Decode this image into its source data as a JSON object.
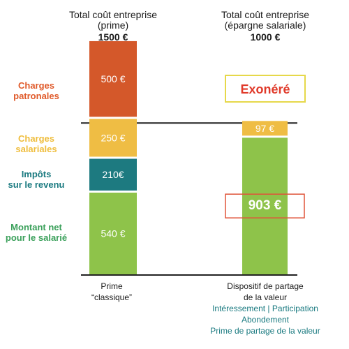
{
  "chart_data": {
    "type": "bar",
    "stacked": true,
    "categories": [
      "Prime classique",
      "Dispositif de partage de la valeur"
    ],
    "headers": [
      {
        "line1": "Total coût entreprise",
        "line2": "(prime)",
        "total": "1500 €"
      },
      {
        "line1": "Total coût entreprise",
        "line2": "(épargne salariale)",
        "total": "1000 €"
      }
    ],
    "row_labels": [
      {
        "key": "charges_patronales",
        "lines": [
          "Charges",
          "patronales"
        ],
        "color": "#e05a2a"
      },
      {
        "key": "charges_salariales",
        "lines": [
          "Charges",
          "salariales"
        ],
        "color": "#efbd3c"
      },
      {
        "key": "impots",
        "lines": [
          "Impôts",
          "sur le revenu"
        ],
        "color": "#1a7a80"
      },
      {
        "key": "net",
        "lines": [
          "Montant net",
          "pour le salarié"
        ],
        "color": "#3aa05a"
      }
    ],
    "bars": [
      {
        "segments": [
          {
            "name": "Charges patronales",
            "value": 500,
            "label": "500 €",
            "color": "#d4582a"
          },
          {
            "name": "Charges salariales",
            "value": 250,
            "label": "250 €",
            "color": "#efbd44"
          },
          {
            "name": "Impôts sur le revenu",
            "value": 210,
            "label": "210€",
            "color": "#1d7a80"
          },
          {
            "name": "Montant net pour le salarié",
            "value": 540,
            "label": "540 €",
            "color": "#8ec34a"
          }
        ]
      },
      {
        "segments": [
          {
            "name": "Charges salariales",
            "value": 97,
            "label": "97 €",
            "color": "#efbd44"
          },
          {
            "name": "Montant net pour le salarié",
            "value": 903,
            "label": "903 €",
            "color": "#8ec34a"
          }
        ]
      }
    ],
    "exonere_label": "Exonéré",
    "exonere_color": "#e03a2a",
    "exonere_border": "#e6d84a",
    "highlight_border": "#e0553a",
    "axis_color": "#222222"
  },
  "footer": {
    "left_line1": "Prime",
    "left_line2": "“classique”",
    "right_line1": "Dispositif de partage",
    "right_line2": "de la valeur",
    "right_items": [
      "Intéressement | Participation",
      "Abondement",
      "Prime de partage de la valeur"
    ]
  }
}
